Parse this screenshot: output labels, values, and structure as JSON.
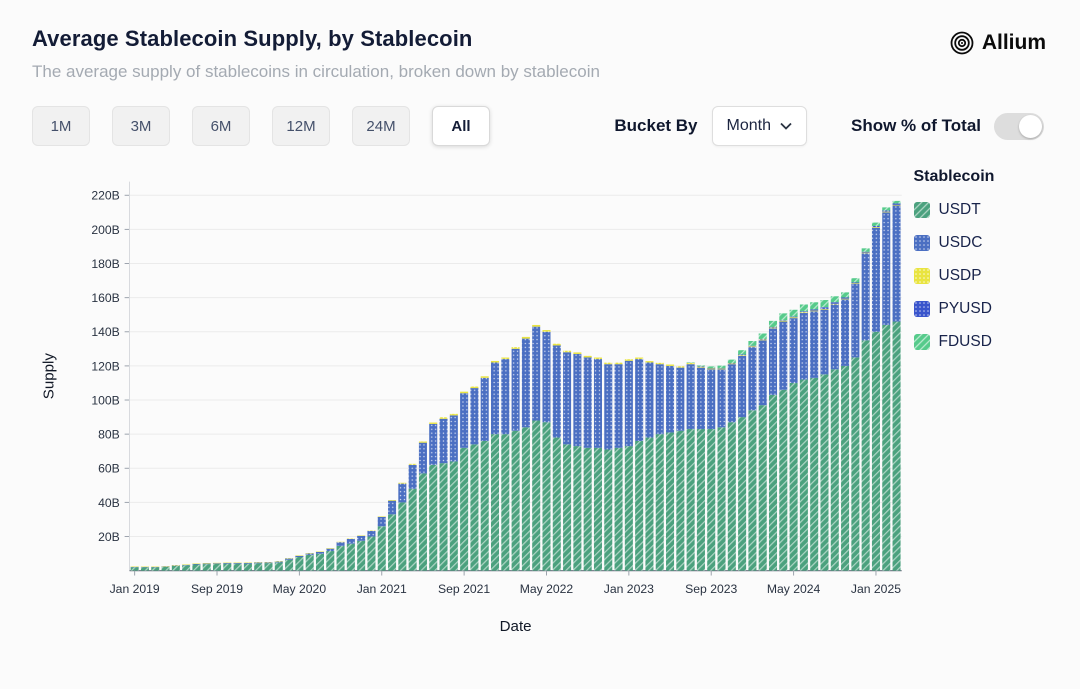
{
  "header": {
    "title": "Average Stablecoin Supply, by Stablecoin",
    "subtitle": "The average supply of stablecoins in circulation, broken down by stablecoin",
    "brand": "Allium"
  },
  "controls": {
    "range_buttons": [
      "1M",
      "3M",
      "6M",
      "12M",
      "24M",
      "All"
    ],
    "active_range": "All",
    "bucket_by_label": "Bucket By",
    "bucket_value": "Month",
    "toggle_label": "Show % of Total",
    "toggle_on": false
  },
  "chart_data": {
    "type": "bar",
    "stacked": true,
    "xlabel": "Date",
    "ylabel": "Supply",
    "ylim": [
      0,
      228
    ],
    "y_tick_labels": [
      "20B",
      "40B",
      "60B",
      "80B",
      "100B",
      "120B",
      "140B",
      "160B",
      "180B",
      "200B",
      "220B"
    ],
    "x_tick_labels": [
      "Jan 2019",
      "Sep 2019",
      "May 2020",
      "Jan 2021",
      "Sep 2021",
      "May 2022",
      "Jan 2023",
      "Sep 2023",
      "May 2024",
      "Jan 2025"
    ],
    "x_tick_indices": [
      0,
      8,
      16,
      24,
      32,
      40,
      48,
      56,
      64,
      72
    ],
    "legend_title": "Stablecoin",
    "legend_position": "right",
    "grid": true,
    "x": [
      "2019-01",
      "2019-02",
      "2019-03",
      "2019-04",
      "2019-05",
      "2019-06",
      "2019-07",
      "2019-08",
      "2019-09",
      "2019-10",
      "2019-11",
      "2019-12",
      "2020-01",
      "2020-02",
      "2020-03",
      "2020-04",
      "2020-05",
      "2020-06",
      "2020-07",
      "2020-08",
      "2020-09",
      "2020-10",
      "2020-11",
      "2020-12",
      "2021-01",
      "2021-02",
      "2021-03",
      "2021-04",
      "2021-05",
      "2021-06",
      "2021-07",
      "2021-08",
      "2021-09",
      "2021-10",
      "2021-11",
      "2021-12",
      "2022-01",
      "2022-02",
      "2022-03",
      "2022-04",
      "2022-05",
      "2022-06",
      "2022-07",
      "2022-08",
      "2022-09",
      "2022-10",
      "2022-11",
      "2022-12",
      "2023-01",
      "2023-02",
      "2023-03",
      "2023-04",
      "2023-05",
      "2023-06",
      "2023-07",
      "2023-08",
      "2023-09",
      "2023-10",
      "2023-11",
      "2023-12",
      "2024-01",
      "2024-02",
      "2024-03",
      "2024-04",
      "2024-05",
      "2024-06",
      "2024-07",
      "2024-08",
      "2024-09",
      "2024-10",
      "2024-11",
      "2024-12",
      "2025-01",
      "2025-02",
      "2025-03"
    ],
    "series": [
      {
        "name": "USDT",
        "color": "#4ba17e",
        "pattern": "hatch",
        "values": [
          2.0,
          2.0,
          2.0,
          2.2,
          2.8,
          3.1,
          3.6,
          3.8,
          4.0,
          4.1,
          4.1,
          4.1,
          4.3,
          4.4,
          4.8,
          6.4,
          8.0,
          9.2,
          9.9,
          11.5,
          14.5,
          15.8,
          17.5,
          20.0,
          26,
          33,
          40,
          48,
          57,
          62,
          63,
          64,
          72,
          74,
          76,
          80,
          80,
          82,
          84,
          88,
          87,
          78,
          74,
          73,
          72,
          72,
          71,
          72,
          73,
          76,
          78,
          80,
          81,
          82,
          83,
          83,
          83,
          84,
          87,
          90,
          94,
          97,
          103,
          106,
          110,
          112,
          113,
          115,
          118,
          120,
          125,
          135,
          140,
          144,
          146
        ]
      },
      {
        "name": "USDC",
        "color": "#4b6fc2",
        "pattern": "dots",
        "values": [
          0.3,
          0.25,
          0.25,
          0.3,
          0.3,
          0.35,
          0.4,
          0.4,
          0.4,
          0.45,
          0.45,
          0.5,
          0.5,
          0.45,
          0.6,
          0.7,
          0.7,
          0.9,
          1.1,
          1.4,
          2.2,
          2.8,
          2.9,
          3.3,
          5.5,
          8,
          11,
          14,
          18,
          24,
          26,
          27,
          32,
          33,
          37,
          42,
          44,
          48,
          52,
          55,
          53,
          54,
          54,
          54,
          53,
          52,
          50,
          49,
          50,
          48,
          44,
          41,
          39,
          37,
          38,
          36,
          35,
          34,
          34,
          36,
          37,
          38,
          39,
          40,
          38,
          39,
          39,
          38,
          38,
          39,
          43,
          51,
          61,
          66,
          68
        ]
      },
      {
        "name": "USDP",
        "color": "#e9e440",
        "pattern": "dots",
        "values": [
          0.15,
          0.15,
          0.15,
          0.15,
          0.2,
          0.2,
          0.2,
          0.2,
          0.2,
          0.2,
          0.2,
          0.2,
          0.2,
          0.2,
          0.2,
          0.25,
          0.25,
          0.25,
          0.25,
          0.25,
          0.25,
          0.25,
          0.25,
          0.25,
          0.3,
          0.4,
          0.5,
          0.6,
          0.7,
          0.8,
          0.9,
          0.9,
          0.9,
          0.9,
          0.9,
          0.9,
          0.9,
          1.0,
          1.0,
          1.0,
          1.0,
          1.0,
          0.9,
          0.9,
          0.9,
          0.9,
          0.9,
          0.9,
          0.9,
          0.9,
          0.8,
          0.8,
          0.8,
          0.8,
          0.8,
          0.7,
          0.6,
          0.5,
          0.5,
          0.5,
          0.5,
          0.5,
          0.5,
          0.5,
          0.5,
          0.5,
          0.4,
          0.4,
          0.4,
          0.4,
          0.4,
          0.4,
          0.4,
          0.4,
          0.4
        ]
      },
      {
        "name": "PYUSD",
        "color": "#3a55cc",
        "pattern": "dots",
        "values": [
          0,
          0,
          0,
          0,
          0,
          0,
          0,
          0,
          0,
          0,
          0,
          0,
          0,
          0,
          0,
          0,
          0,
          0,
          0,
          0,
          0,
          0,
          0,
          0,
          0,
          0,
          0,
          0,
          0,
          0,
          0,
          0,
          0,
          0,
          0,
          0,
          0,
          0,
          0,
          0,
          0,
          0,
          0,
          0,
          0,
          0,
          0,
          0,
          0,
          0,
          0,
          0,
          0,
          0,
          0,
          0.05,
          0.1,
          0.15,
          0.2,
          0.2,
          0.3,
          0.3,
          0.3,
          0.3,
          0.4,
          0.5,
          0.7,
          1.0,
          0.9,
          0.7,
          0.5,
          0.5,
          0.6,
          0.7,
          0.8
        ]
      },
      {
        "name": "FDUSD",
        "color": "#56cb8b",
        "pattern": "hatch",
        "values": [
          0,
          0,
          0,
          0,
          0,
          0,
          0,
          0,
          0,
          0,
          0,
          0,
          0,
          0,
          0,
          0,
          0,
          0,
          0,
          0,
          0,
          0,
          0,
          0,
          0,
          0,
          0,
          0,
          0,
          0,
          0,
          0,
          0,
          0,
          0,
          0,
          0,
          0,
          0,
          0,
          0,
          0,
          0,
          0,
          0,
          0,
          0,
          0,
          0,
          0,
          0,
          0,
          0,
          0,
          0.3,
          0.5,
          1.0,
          1.5,
          2.0,
          2.5,
          2.8,
          3.2,
          3.6,
          4.0,
          4.0,
          4.0,
          4.2,
          4.2,
          3.5,
          3.0,
          2.5,
          2.0,
          2.0,
          1.8,
          1.5
        ]
      }
    ]
  }
}
